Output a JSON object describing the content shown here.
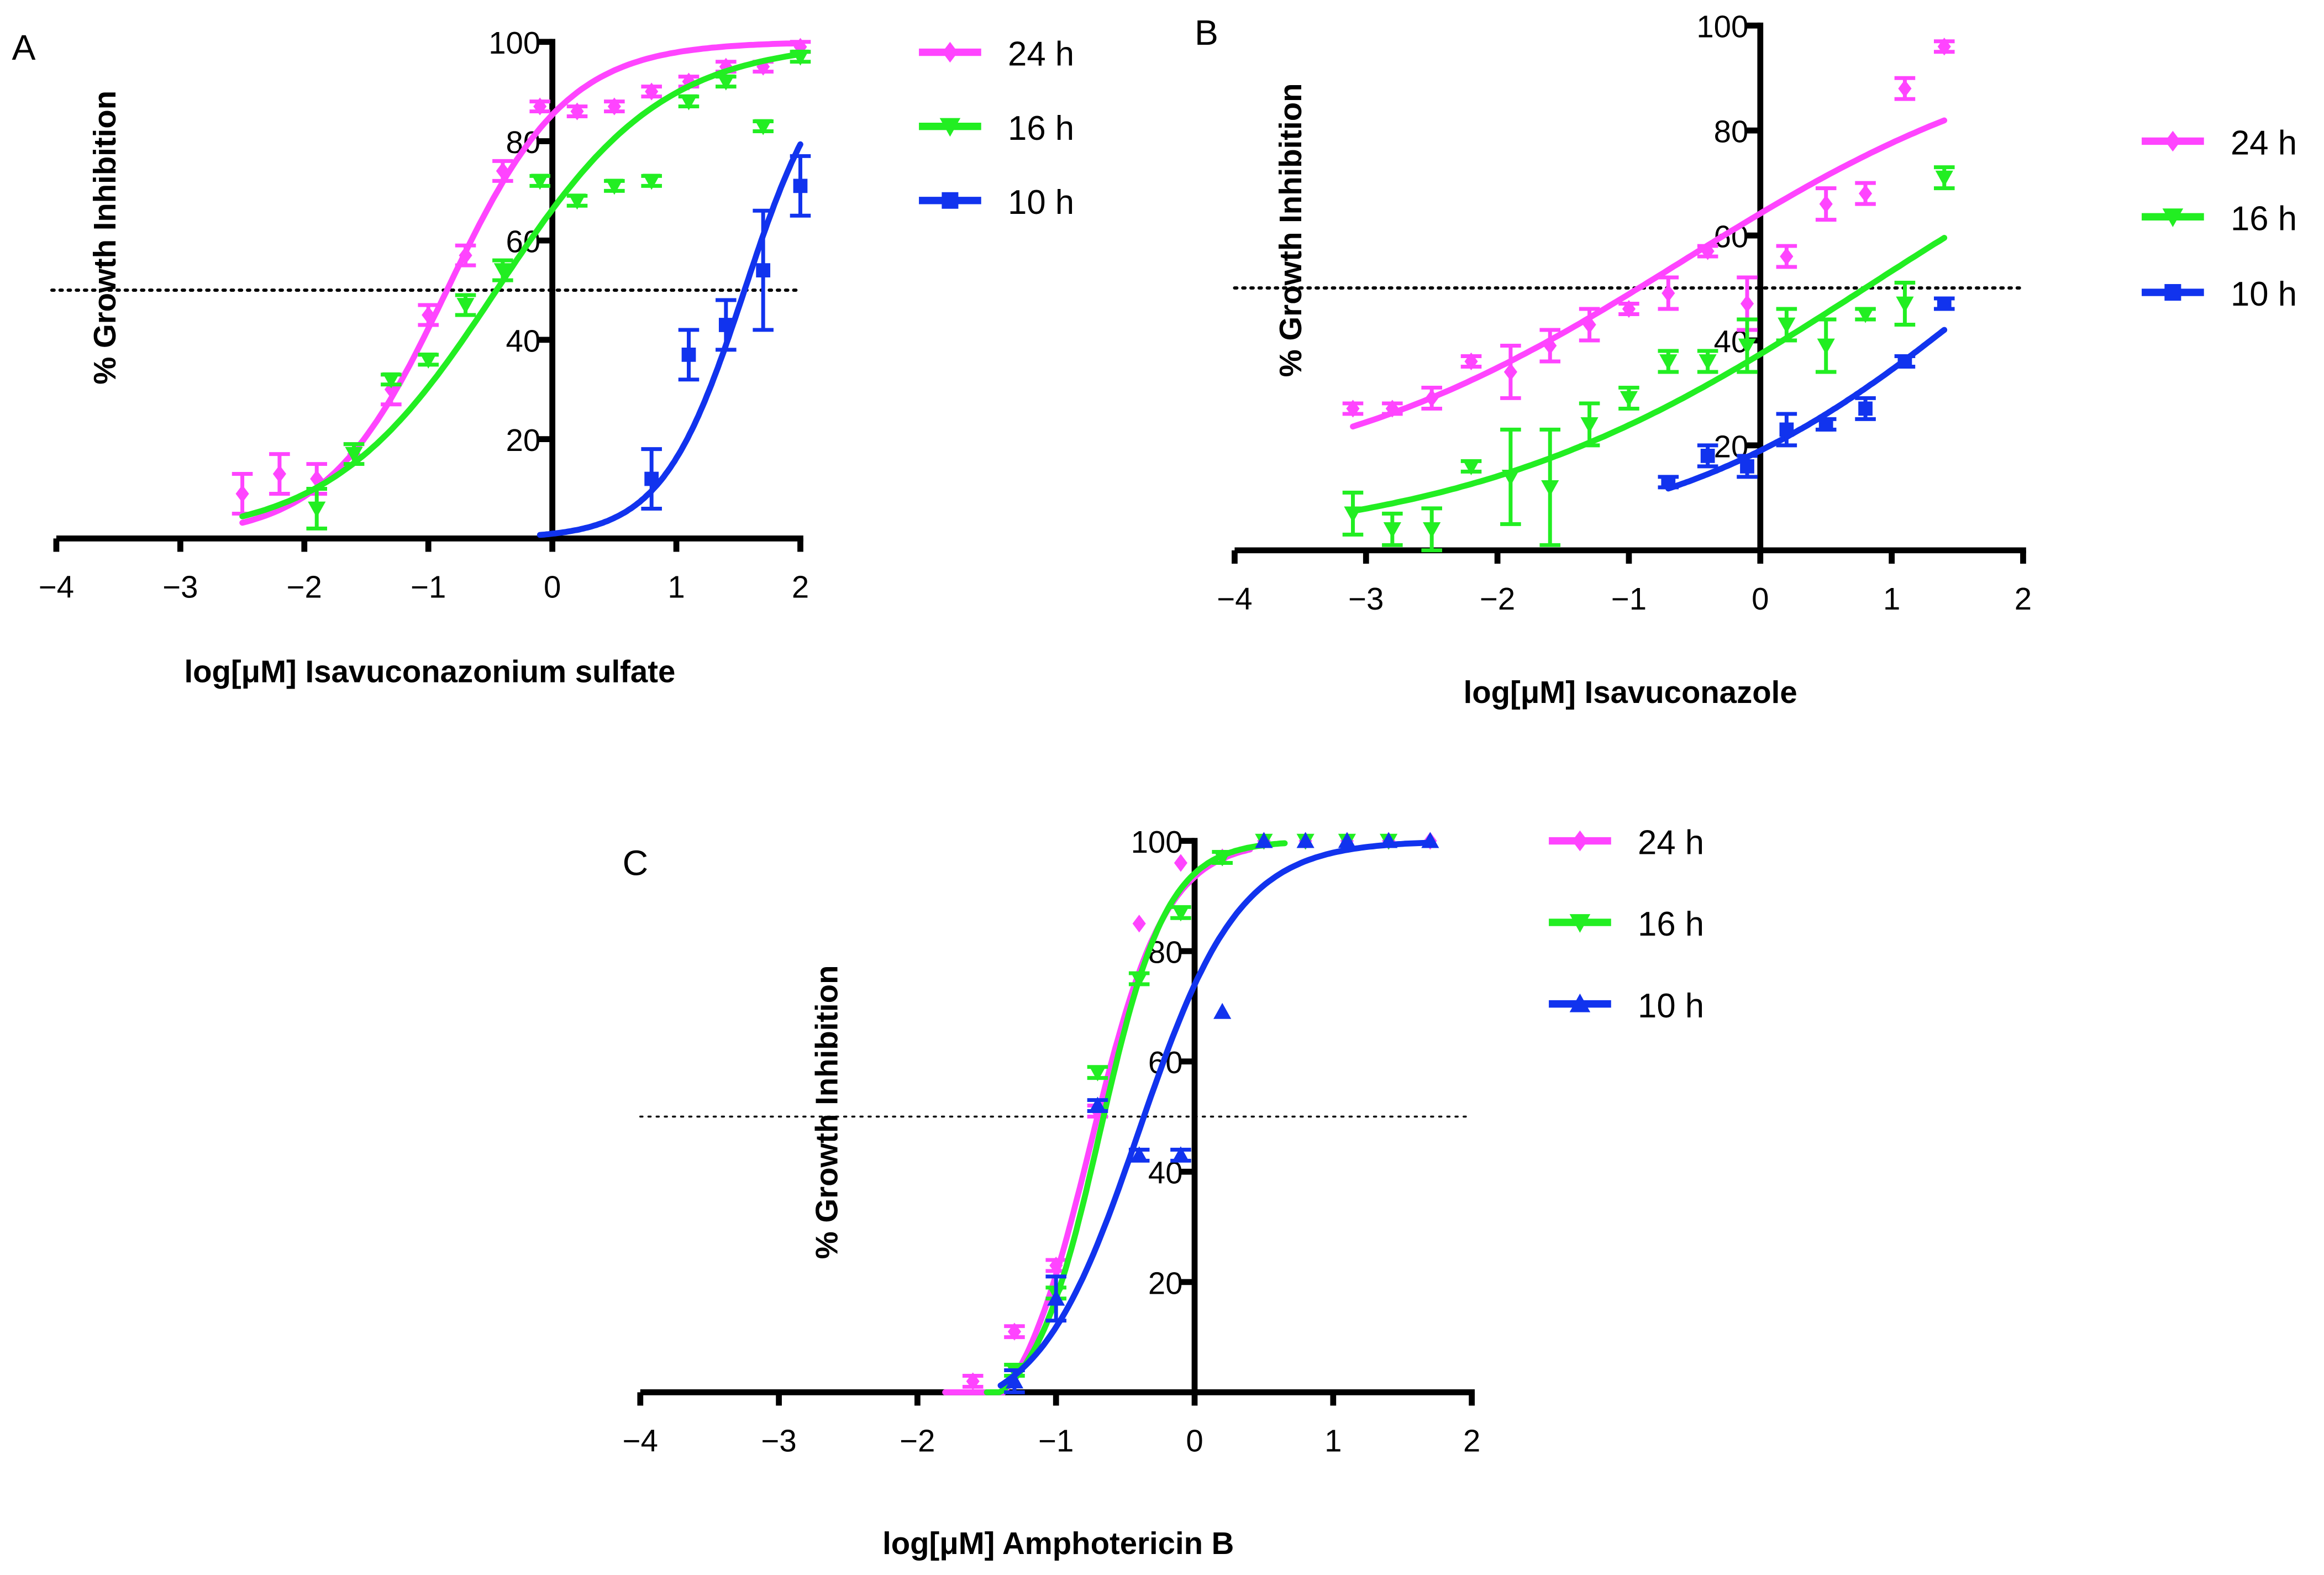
{
  "chart_data": [
    {
      "type": "scatter",
      "panel_label": "A",
      "title": "",
      "xlabel": "log[μM] Isavuconazonium sulfate",
      "ylabel": "% Growth Inhibition",
      "xlim": [
        -4,
        2
      ],
      "ylim": [
        0,
        100
      ],
      "xticks": [
        "−4",
        "−3",
        "−2",
        "−1",
        "0",
        "1",
        "2"
      ],
      "yticks": [
        "20",
        "40",
        "60",
        "80",
        "100"
      ],
      "reference_line_y": 50,
      "legend": "top-right",
      "series": [
        {
          "name": "24 h",
          "color": "#ff44ff",
          "marker": "diamond",
          "fit": {
            "bottom": 0,
            "top": 100,
            "logIC50": -0.85,
            "hill": 0.9,
            "xrange": [
              -2.5,
              2.0
            ]
          },
          "x": [
            -2.5,
            -2.2,
            -1.9,
            -1.6,
            -1.3,
            -1.0,
            -0.7,
            -0.4,
            -0.1,
            0.2,
            0.5,
            0.8,
            1.1,
            1.4,
            1.7,
            2.0
          ],
          "y": [
            9,
            13,
            12,
            17,
            30,
            45,
            57,
            74,
            87,
            86,
            87,
            90,
            92,
            95,
            95,
            99
          ],
          "err": [
            4,
            4,
            3,
            2,
            3,
            2,
            2,
            2,
            1,
            1,
            1,
            1,
            1,
            1,
            1,
            1
          ]
        },
        {
          "name": "16 h",
          "color": "#22ee22",
          "marker": "triangle-down",
          "fit": {
            "bottom": 0,
            "top": 100,
            "logIC50": -0.45,
            "hill": 0.65,
            "xrange": [
              -2.5,
              2.0
            ]
          },
          "x": [
            -1.9,
            -1.6,
            -1.3,
            -1.0,
            -0.7,
            -0.4,
            -0.1,
            0.2,
            0.5,
            0.8,
            1.1,
            1.4,
            1.7,
            2.0
          ],
          "y": [
            6,
            17,
            32,
            36,
            47,
            54,
            72,
            68,
            71,
            72,
            88,
            92,
            83,
            97
          ],
          "err": [
            4,
            2,
            1,
            1,
            2,
            2,
            1,
            1,
            1,
            1,
            1,
            1,
            1,
            1
          ]
        },
        {
          "name": "10 h",
          "color": "#1133ee",
          "marker": "square",
          "fit": {
            "bottom": 0,
            "top": 100,
            "logIC50": 1.55,
            "hill": 1.3,
            "xrange": [
              -0.1,
              2.0
            ]
          },
          "x": [
            0.8,
            1.1,
            1.4,
            1.7,
            2.0
          ],
          "y": [
            12,
            37,
            43,
            54,
            71
          ],
          "err": [
            6,
            5,
            5,
            12,
            6
          ]
        }
      ]
    },
    {
      "type": "scatter",
      "panel_label": "B",
      "title": "",
      "xlabel": "log[μM] Isavuconazole",
      "ylabel": "% Growth Inhibition",
      "xlim": [
        -4,
        2
      ],
      "ylim": [
        0,
        100
      ],
      "xticks": [
        "−4",
        "−3",
        "−2",
        "−1",
        "0",
        "1",
        "2"
      ],
      "yticks": [
        "20",
        "40",
        "60",
        "80",
        "100"
      ],
      "reference_line_y": 50,
      "legend": "right",
      "series": [
        {
          "name": "24 h",
          "color": "#ff44ff",
          "marker": "diamond",
          "fit": {
            "bottom": 10,
            "top": 100,
            "logIC50": -0.6,
            "hill": 0.3,
            "xrange": [
              -3.1,
              1.4
            ]
          },
          "x": [
            -3.1,
            -2.8,
            -2.5,
            -2.2,
            -1.9,
            -1.6,
            -1.3,
            -1.0,
            -0.7,
            -0.4,
            -0.1,
            0.2,
            0.5,
            0.8,
            1.1,
            1.4
          ],
          "y": [
            27,
            27,
            29,
            36,
            34,
            39,
            43,
            46,
            49,
            57,
            47,
            56,
            66,
            68,
            88,
            96
          ],
          "err": [
            1,
            1,
            2,
            1,
            5,
            3,
            3,
            1,
            3,
            1,
            5,
            2,
            3,
            2,
            2,
            1
          ]
        },
        {
          "name": "16 h",
          "color": "#22ee22",
          "marker": "triangle-down",
          "fit": {
            "bottom": 0,
            "top": 100,
            "logIC50": 0.8,
            "hill": 0.28,
            "xrange": [
              -3.1,
              1.4
            ]
          },
          "x": [
            -3.1,
            -2.8,
            -2.5,
            -2.2,
            -1.9,
            -1.6,
            -1.3,
            -1.0,
            -0.7,
            -0.4,
            -0.1,
            0.2,
            0.5,
            0.8,
            1.1,
            1.4
          ],
          "y": [
            7,
            4,
            4,
            16,
            14,
            12,
            24,
            29,
            36,
            36,
            39,
            43,
            39,
            45,
            47,
            71
          ],
          "err": [
            4,
            3,
            4,
            1,
            9,
            11,
            4,
            2,
            2,
            2,
            5,
            3,
            5,
            1,
            4,
            2
          ]
        },
        {
          "name": "10 h",
          "color": "#1133ee",
          "marker": "square",
          "fit": {
            "bottom": 0,
            "top": 100,
            "logIC50": 1.8,
            "hill": 0.35,
            "xrange": [
              -0.7,
              1.4
            ]
          },
          "x": [
            -0.7,
            -0.4,
            -0.1,
            0.2,
            0.5,
            0.8,
            1.1,
            1.4
          ],
          "y": [
            13,
            18,
            16,
            23,
            24,
            27,
            36,
            47
          ],
          "err": [
            1,
            2,
            2,
            3,
            1,
            2,
            1,
            1
          ]
        }
      ]
    },
    {
      "type": "scatter",
      "panel_label": "C",
      "title": "",
      "xlabel": "log[μM] Amphotericin B",
      "ylabel": "% Growth Inhibition",
      "xlim": [
        -4,
        2
      ],
      "ylim": [
        0,
        100
      ],
      "xticks": [
        "−4",
        "−3",
        "−2",
        "−1",
        "0",
        "1",
        "2"
      ],
      "yticks": [
        "20",
        "40",
        "60",
        "80",
        "100"
      ],
      "reference_line_y": 50,
      "legend": "top-right",
      "series": [
        {
          "name": "24 h",
          "color": "#ff44ff",
          "marker": "diamond",
          "fit": {
            "bottom": -10,
            "top": 100,
            "logIC50": -0.75,
            "hill": 1.6,
            "xrange": [
              -1.8,
              0.4
            ]
          },
          "x": [
            -1.6,
            -1.3,
            -1.0,
            -0.7,
            -0.4,
            -0.1,
            0.2,
            0.5,
            0.8,
            1.1,
            1.4,
            1.7
          ],
          "y": [
            2,
            11,
            23,
            51,
            85,
            96,
            97,
            100,
            100,
            100,
            100,
            100
          ],
          "err": [
            1,
            1,
            1,
            1,
            0,
            0,
            0,
            0,
            0,
            0,
            0,
            0
          ]
        },
        {
          "name": "16 h",
          "color": "#22ee22",
          "marker": "triangle-down",
          "fit": {
            "bottom": -5,
            "top": 100,
            "logIC50": -0.68,
            "hill": 1.8,
            "xrange": [
              -1.5,
              0.65
            ]
          },
          "x": [
            -1.3,
            -1.0,
            -0.7,
            -0.4,
            -0.1,
            0.2,
            0.5,
            0.8,
            1.1,
            1.4
          ],
          "y": [
            4,
            18,
            58,
            75,
            87,
            97,
            100,
            100,
            100,
            100
          ],
          "err": [
            1,
            1,
            1,
            1,
            1,
            1,
            0,
            0,
            0,
            0
          ]
        },
        {
          "name": "10 h",
          "color": "#1133ee",
          "marker": "triangle-up",
          "fit": {
            "bottom": -5,
            "top": 100,
            "logIC50": -0.4,
            "hill": 1.2,
            "xrange": [
              -1.4,
              1.7
            ]
          },
          "x": [
            -1.3,
            -1.0,
            -0.7,
            -0.4,
            -0.1,
            0.2,
            0.5,
            0.8,
            1.1,
            1.4,
            1.7
          ],
          "y": [
            2,
            17,
            52,
            43,
            43,
            69,
            100,
            100,
            100,
            100,
            100
          ],
          "err": [
            2,
            4,
            1,
            1,
            1,
            0,
            0,
            0,
            0,
            0,
            0
          ]
        }
      ]
    }
  ]
}
